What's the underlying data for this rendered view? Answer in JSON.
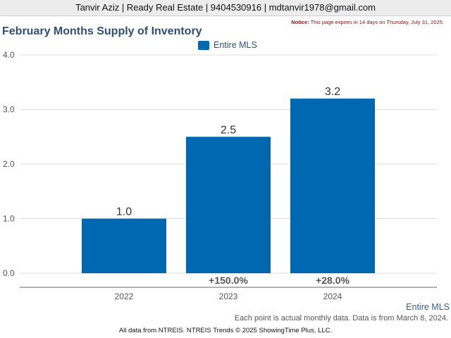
{
  "header": {
    "contact_line": "Tanvir Aziz | Ready Real Estate | 9404530916 | mdtanvir1978@gmail.com",
    "notice_label": "Notice:",
    "notice_text": "This page expires in 14 days on Thursday, July 31, 2025."
  },
  "colors": {
    "bar": "#0067b1",
    "title": "#2f4f77",
    "change_text": "#555555"
  },
  "chart_data": {
    "type": "bar",
    "title": "February Months Supply of Inventory",
    "categories": [
      "2022",
      "2023",
      "2024"
    ],
    "series": [
      {
        "name": "Entire MLS",
        "values": [
          1.0,
          2.5,
          3.2
        ]
      }
    ],
    "value_labels": [
      "1.0",
      "2.5",
      "3.2"
    ],
    "change_labels": [
      "",
      "+150.0%",
      "+28.0%"
    ],
    "y_ticks": [
      "0.0",
      "1.0",
      "2.0",
      "3.0",
      "4.0"
    ],
    "ylim": [
      0,
      4
    ],
    "grid": true,
    "legend_position": "top-center"
  },
  "footer": {
    "series_label": "Entire MLS",
    "note": "Each point is actual monthly data. Data is from March 8, 2024.",
    "source": "All data from NTREIS. NTREIS Trends © 2025 ShowingTime Plus, LLC."
  }
}
